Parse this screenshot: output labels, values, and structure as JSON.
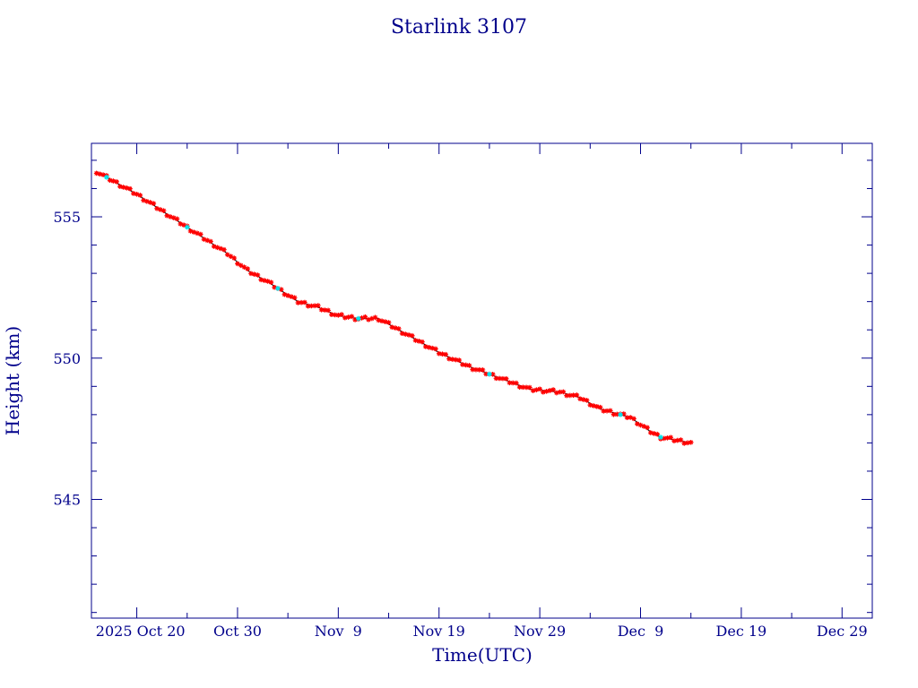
{
  "chart_data": {
    "type": "line",
    "title": "Starlink 3107",
    "xlabel": "Time(UTC)",
    "ylabel": "Height (km)",
    "x_tick_labels": [
      "2025 Oct 20",
      "Oct 30",
      "Nov  9",
      "Nov 19",
      "Nov 29",
      "Dec  9",
      "Dec 19",
      "Dec 29"
    ],
    "x_tick_dates": [
      "2025-10-20",
      "2025-10-30",
      "2025-11-09",
      "2025-11-19",
      "2025-11-29",
      "2025-12-09",
      "2025-12-19",
      "2025-12-29"
    ],
    "xlim": [
      "2025-10-15T12:00",
      "2026-01-01"
    ],
    "y_ticks": [
      545,
      550,
      555
    ],
    "ylim": [
      540.8,
      557.6
    ],
    "grid": false,
    "colors": {
      "axis": "#00008b",
      "line": "#000000",
      "marker": "#ff0000",
      "highlight": "#00e5ee"
    },
    "series": [
      {
        "x": [
          "2025-10-16",
          "2025-10-18",
          "2025-10-20",
          "2025-10-23",
          "2025-10-26",
          "2025-10-29",
          "2025-10-31",
          "2025-11-02",
          "2025-11-05",
          "2025-11-07",
          "2025-11-09",
          "2025-11-11",
          "2025-11-13",
          "2025-11-15",
          "2025-11-17",
          "2025-11-19",
          "2025-11-22",
          "2025-11-25",
          "2025-11-28",
          "2025-12-01",
          "2025-12-03",
          "2025-12-05",
          "2025-12-08",
          "2025-12-10",
          "2025-12-11",
          "2025-12-14"
        ],
        "y": [
          556.6,
          556.2,
          555.8,
          555.1,
          554.4,
          553.7,
          553.1,
          552.7,
          552.0,
          551.8,
          551.5,
          551.4,
          551.4,
          551.0,
          550.6,
          550.2,
          549.7,
          549.3,
          548.9,
          548.8,
          548.6,
          548.2,
          547.9,
          547.4,
          547.2,
          547.0
        ]
      }
    ],
    "highlight_dates": [
      "2025-10-17",
      "2025-10-25",
      "2025-11-03",
      "2025-11-11",
      "2025-11-24",
      "2025-12-07",
      "2025-12-11"
    ]
  }
}
